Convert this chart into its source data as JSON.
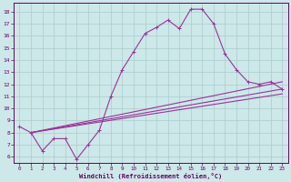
{
  "xlabel": "Windchill (Refroidissement éolien,°C)",
  "bg_color": "#cce8e8",
  "line_color": "#993399",
  "grid_color": "#aacccc",
  "spine_color": "#660066",
  "xlim": [
    -0.5,
    23.5
  ],
  "ylim": [
    5.5,
    18.7
  ],
  "xticks": [
    0,
    1,
    2,
    3,
    4,
    5,
    6,
    7,
    8,
    9,
    10,
    11,
    12,
    13,
    14,
    15,
    16,
    17,
    18,
    19,
    20,
    21,
    22,
    23
  ],
  "yticks": [
    6,
    7,
    8,
    9,
    10,
    11,
    12,
    13,
    14,
    15,
    16,
    17,
    18
  ],
  "series_main": {
    "x": [
      0,
      1,
      2,
      3,
      4,
      5,
      6,
      7,
      8,
      9,
      10,
      11,
      12,
      13,
      14,
      15,
      16,
      17,
      18,
      19,
      20,
      21,
      22,
      23
    ],
    "y": [
      8.5,
      8.0,
      6.5,
      7.5,
      7.5,
      5.8,
      7.0,
      8.2,
      11.0,
      13.2,
      14.7,
      16.2,
      16.7,
      17.3,
      16.6,
      18.2,
      18.2,
      17.0,
      14.5,
      13.2,
      12.2,
      12.0,
      12.2,
      11.6
    ]
  },
  "series_lines": [
    {
      "x": [
        1,
        23
      ],
      "y": [
        8.0,
        12.2
      ]
    },
    {
      "x": [
        1,
        23
      ],
      "y": [
        8.0,
        11.6
      ]
    },
    {
      "x": [
        1,
        23
      ],
      "y": [
        8.0,
        11.2
      ]
    }
  ]
}
